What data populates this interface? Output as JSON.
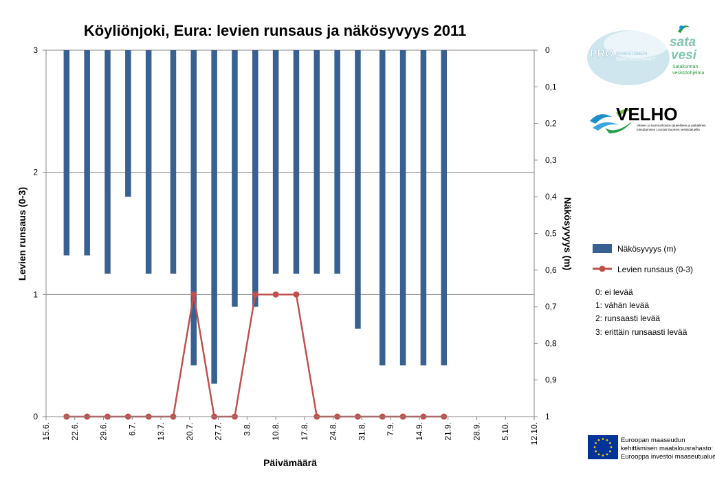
{
  "chart_data": {
    "type": "bar",
    "title": "Köyliönjoki, Eura: levien runsaus ja näkösyvyys 2011",
    "xlabel": "Päivämäärä",
    "ylabel_left": "Levien runsaus (0-3)",
    "ylabel_right": "Näkösyvyys (m)",
    "left_axis": {
      "min": 0,
      "max": 3,
      "ticks": [
        "0",
        "1",
        "2",
        "3"
      ],
      "tick_values": [
        0,
        1,
        2,
        3
      ]
    },
    "right_axis": {
      "min": 0,
      "max": 1,
      "reversed": true,
      "ticks": [
        "0",
        "0,1",
        "0,2",
        "0,3",
        "0,4",
        "0,5",
        "0,6",
        "0,7",
        "0,8",
        "0,9",
        "1"
      ],
      "tick_values": [
        0,
        0.1,
        0.2,
        0.3,
        0.4,
        0.5,
        0.6,
        0.7,
        0.8,
        0.9,
        1
      ]
    },
    "x_axis": {
      "start": "2011-06-15",
      "end": "2011-10-12",
      "tick_labels": [
        "15.6.",
        "22.6.",
        "29.6.",
        "6.7.",
        "13.7.",
        "20.7.",
        "27.7.",
        "3.8.",
        "10.8.",
        "17.8.",
        "24.8.",
        "31.8.",
        "7.9.",
        "14.9.",
        "21.9.",
        "28.9.",
        "5.10.",
        "12.10."
      ],
      "tick_dates": [
        "2011-06-15",
        "2011-06-22",
        "2011-06-29",
        "2011-07-06",
        "2011-07-13",
        "2011-07-20",
        "2011-07-27",
        "2011-08-03",
        "2011-08-10",
        "2011-08-17",
        "2011-08-24",
        "2011-08-31",
        "2011-09-07",
        "2011-09-14",
        "2011-09-21",
        "2011-09-28",
        "2011-10-05",
        "2011-10-12"
      ]
    },
    "grid": true,
    "legend_position": "right",
    "series": [
      {
        "name": "Näkösyvyys (m)",
        "type": "bar",
        "axis": "right",
        "color": "#386090",
        "x": [
          "2011-06-20",
          "2011-06-25",
          "2011-06-30",
          "2011-07-05",
          "2011-07-10",
          "2011-07-16",
          "2011-07-21",
          "2011-07-26",
          "2011-07-31",
          "2011-08-05",
          "2011-08-10",
          "2011-08-15",
          "2011-08-20",
          "2011-08-25",
          "2011-08-30",
          "2011-09-05",
          "2011-09-10",
          "2011-09-15",
          "2011-09-20"
        ],
        "values": [
          0.56,
          0.56,
          0.61,
          0.4,
          0.61,
          0.61,
          0.86,
          0.91,
          0.7,
          0.7,
          0.61,
          0.61,
          0.61,
          0.61,
          0.76,
          0.86,
          0.86,
          0.86,
          0.86
        ]
      },
      {
        "name": "Levien runsaus (0-3)",
        "type": "line",
        "axis": "left",
        "color": "#C0504D",
        "x": [
          "2011-06-20",
          "2011-06-25",
          "2011-06-30",
          "2011-07-05",
          "2011-07-10",
          "2011-07-16",
          "2011-07-21",
          "2011-07-26",
          "2011-07-31",
          "2011-08-05",
          "2011-08-10",
          "2011-08-15",
          "2011-08-20",
          "2011-08-25",
          "2011-08-30",
          "2011-09-05",
          "2011-09-10",
          "2011-09-15",
          "2011-09-20"
        ],
        "values": [
          0,
          0,
          0,
          0,
          0,
          0,
          1,
          0,
          0,
          1,
          1,
          1,
          0,
          0,
          0,
          0,
          0,
          0,
          0
        ]
      }
    ],
    "legend_notes": [
      "0: ei levää",
      "1: vähän levää",
      "2: runsaasti levää",
      "3: erittäin runsaasti levää"
    ]
  },
  "logos": {
    "pro": {
      "word": "PRO",
      "line1": "SAARISTOMERI",
      "line2": "SKÄRGÅRDSHAVET"
    },
    "satavesi": {
      "line1": "sata",
      "line2": "vesi",
      "line3": "Satakunnan",
      "line4": "vesistöohjelma"
    },
    "velho": {
      "word": "VELHO",
      "line1": "Vesien- ja luonnonhoidon alueellinen ja paikallinen",
      "line2": "toteuttaminen Lounais-Suomen vesistöalueilla"
    },
    "eu": {
      "line1": "Euroopan maaseudun",
      "line2": "kehittämisen maatalousrahasto:",
      "line3": "Eurooppa investoi maaseutualueisiin"
    }
  }
}
